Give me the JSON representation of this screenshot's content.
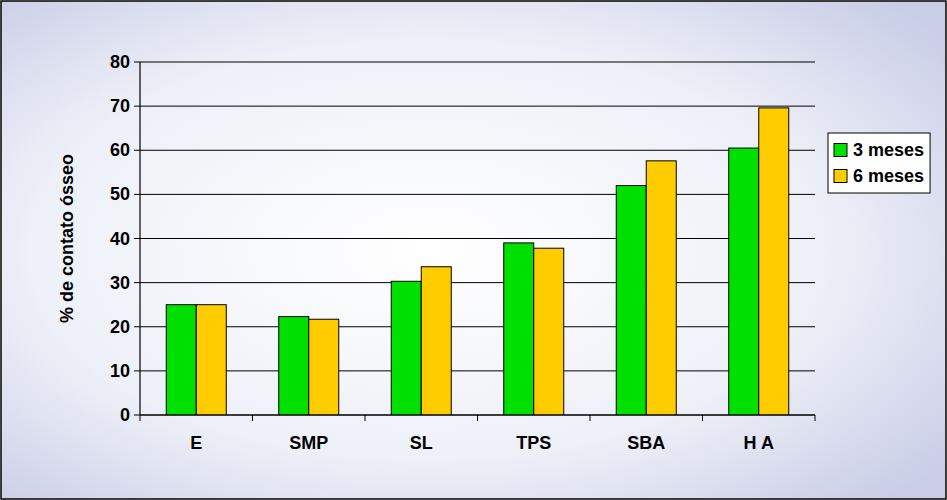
{
  "chart_data": {
    "type": "bar",
    "y_label": "% de contato ósseo",
    "categories": [
      "E",
      "SMP",
      "SL",
      "TPS",
      "SBA",
      "H A"
    ],
    "series": [
      {
        "name": "3 meses",
        "color": "#00e000",
        "values": [
          25,
          22.3,
          30.3,
          39,
          52,
          60.5
        ]
      },
      {
        "name": "6 meses",
        "color": "#ffcc00",
        "values": [
          25,
          21.7,
          33.6,
          37.8,
          57.6,
          69.6
        ]
      }
    ],
    "ylim": [
      0,
      80
    ],
    "yticks": [
      0,
      10,
      20,
      30,
      40,
      50,
      60,
      70,
      80
    ],
    "grid": true,
    "legend": "right"
  }
}
